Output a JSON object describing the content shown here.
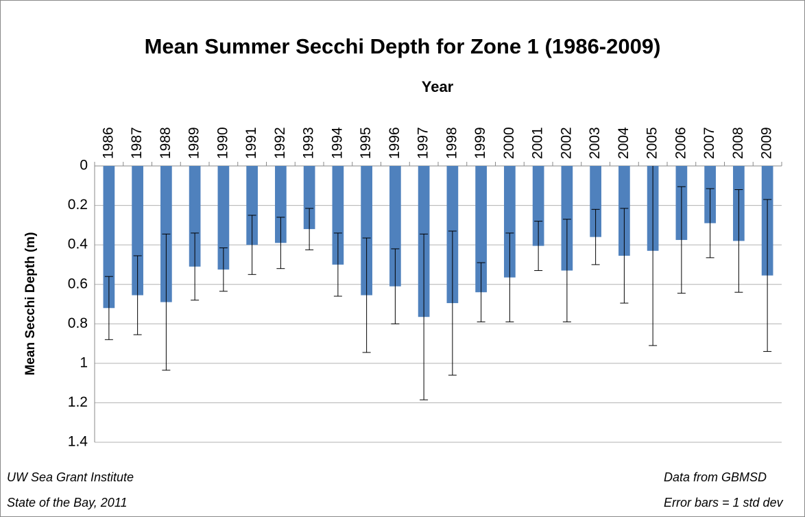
{
  "chart_data": {
    "type": "bar",
    "title": "Mean Summer Secchi Depth for Zone 1 (1986-2009)",
    "x_label": "Year",
    "y_label": "Mean Secchi Depth (m)",
    "categories": [
      "1986",
      "1987",
      "1988",
      "1989",
      "1990",
      "1991",
      "1992",
      "1993",
      "1994",
      "1995",
      "1996",
      "1997",
      "1998",
      "1999",
      "2000",
      "2001",
      "2002",
      "2003",
      "2004",
      "2005",
      "2006",
      "2007",
      "2008",
      "2009"
    ],
    "values": [
      0.72,
      0.655,
      0.69,
      0.51,
      0.525,
      0.4,
      0.39,
      0.32,
      0.5,
      0.655,
      0.61,
      0.765,
      0.695,
      0.64,
      0.565,
      0.405,
      0.53,
      0.36,
      0.455,
      0.43,
      0.375,
      0.29,
      0.38,
      0.555
    ],
    "errors": [
      0.16,
      0.2,
      0.345,
      0.17,
      0.11,
      0.15,
      0.13,
      0.105,
      0.16,
      0.29,
      0.19,
      0.42,
      0.365,
      0.15,
      0.225,
      0.125,
      0.26,
      0.14,
      0.24,
      0.48,
      0.27,
      0.175,
      0.26,
      0.385
    ],
    "color": "#4f81bd",
    "ylim": [
      0,
      1.4
    ],
    "yticks": [
      0,
      0.2,
      0.4,
      0.6,
      0.8,
      1,
      1.2,
      1.4
    ],
    "y_inverted": true,
    "x_axis_position": "top",
    "grid": true,
    "notes_left": [
      "UW  Sea Grant Institute",
      "State of the Bay, 2011"
    ],
    "notes_right": [
      "Data from GBMSD",
      "Error bars = 1 std dev"
    ]
  }
}
